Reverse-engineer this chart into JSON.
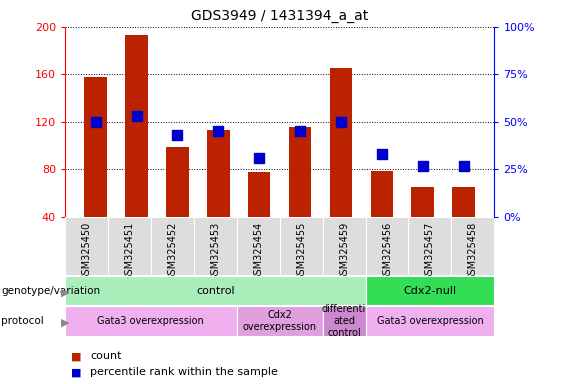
{
  "title": "GDS3949 / 1431394_a_at",
  "samples": [
    "GSM325450",
    "GSM325451",
    "GSM325452",
    "GSM325453",
    "GSM325454",
    "GSM325455",
    "GSM325459",
    "GSM325456",
    "GSM325457",
    "GSM325458"
  ],
  "counts": [
    158,
    193,
    99,
    113,
    78,
    116,
    165,
    79,
    65,
    65
  ],
  "percentile_ranks": [
    50,
    53,
    43,
    45,
    31,
    45,
    50,
    33,
    27,
    27
  ],
  "ylim_left": [
    40,
    200
  ],
  "ylim_right": [
    0,
    100
  ],
  "yticks_left": [
    40,
    80,
    120,
    160,
    200
  ],
  "yticks_right": [
    0,
    25,
    50,
    75,
    100
  ],
  "bar_color": "#bb2200",
  "dot_color": "#0000cc",
  "genotype_groups": [
    {
      "label": "control",
      "start": 0,
      "end": 7,
      "color": "#aaeebb"
    },
    {
      "label": "Cdx2-null",
      "start": 7,
      "end": 10,
      "color": "#33dd55"
    }
  ],
  "protocol_groups": [
    {
      "label": "Gata3 overexpression",
      "start": 0,
      "end": 4,
      "color": "#f0b0f0"
    },
    {
      "label": "Cdx2\noverexpression",
      "start": 4,
      "end": 6,
      "color": "#e0a0e0"
    },
    {
      "label": "differenti\nated\ncontrol",
      "start": 6,
      "end": 7,
      "color": "#cc88cc"
    },
    {
      "label": "Gata3 overexpression",
      "start": 7,
      "end": 10,
      "color": "#f0b0f0"
    }
  ],
  "legend_count_color": "#bb2200",
  "legend_pct_color": "#0000cc",
  "bar_width": 0.55,
  "dot_size": 55,
  "fig_width": 5.65,
  "fig_height": 3.84,
  "dpi": 100
}
